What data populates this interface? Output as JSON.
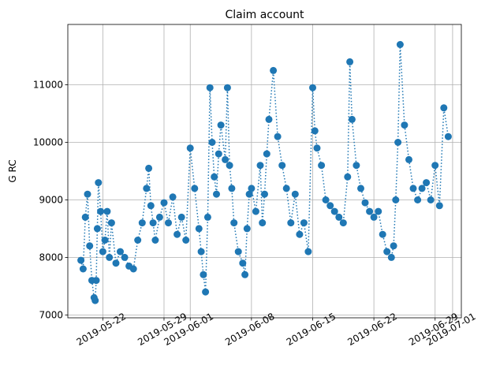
{
  "chart_data": {
    "type": "line",
    "title": "Claim account",
    "xlabel": "",
    "ylabel": "G RC",
    "grid": true,
    "legend": "none",
    "color": "#1f77b4",
    "line_style": "dotted",
    "marker": "circle",
    "x_range": [
      "2019-05-18",
      "2019-07-02"
    ],
    "ylim": [
      6950,
      12050
    ],
    "x_ticks": [
      "2019-05-22",
      "2019-05-29",
      "2019-06-01",
      "2019-06-08",
      "2019-06-15",
      "2019-06-22",
      "2019-06-29",
      "2019-07-01"
    ],
    "y_ticks": [
      7000,
      8000,
      9000,
      10000,
      11000
    ],
    "series": [
      {
        "name": "",
        "x": [
          "2019-05-19 12:00",
          "2019-05-19 18:00",
          "2019-05-20 00:00",
          "2019-05-20 06:00",
          "2019-05-20 12:00",
          "2019-05-20 18:00",
          "2019-05-21 00:00",
          "2019-05-21 03:00",
          "2019-05-21 06:00",
          "2019-05-21 09:00",
          "2019-05-21 12:00",
          "2019-05-21 18:00",
          "2019-05-22 00:00",
          "2019-05-22 06:00",
          "2019-05-22 12:00",
          "2019-05-22 18:00",
          "2019-05-23 00:00",
          "2019-05-23 12:00",
          "2019-05-24 00:00",
          "2019-05-24 12:00",
          "2019-05-25 00:00",
          "2019-05-25 12:00",
          "2019-05-26 00:00",
          "2019-05-26 12:00",
          "2019-05-27 00:00",
          "2019-05-27 06:00",
          "2019-05-27 12:00",
          "2019-05-27 18:00",
          "2019-05-28 00:00",
          "2019-05-28 12:00",
          "2019-05-29 00:00",
          "2019-05-29 12:00",
          "2019-05-30 00:00",
          "2019-05-30 12:00",
          "2019-05-31 00:00",
          "2019-05-31 12:00",
          "2019-06-01 00:00",
          "2019-06-01 12:00",
          "2019-06-02 00:00",
          "2019-06-02 06:00",
          "2019-06-02 12:00",
          "2019-06-02 18:00",
          "2019-06-03 00:00",
          "2019-06-03 06:00",
          "2019-06-03 12:00",
          "2019-06-03 18:00",
          "2019-06-04 00:00",
          "2019-06-04 06:00",
          "2019-06-04 12:00",
          "2019-06-05 00:00",
          "2019-06-05 06:00",
          "2019-06-05 12:00",
          "2019-06-05 18:00",
          "2019-06-06 00:00",
          "2019-06-06 12:00",
          "2019-06-07 00:00",
          "2019-06-07 06:00",
          "2019-06-07 12:00",
          "2019-06-07 18:00",
          "2019-06-08 00:00",
          "2019-06-08 12:00",
          "2019-06-09 00:00",
          "2019-06-09 06:00",
          "2019-06-09 12:00",
          "2019-06-09 18:00",
          "2019-06-10 00:00",
          "2019-06-10 12:00",
          "2019-06-11 00:00",
          "2019-06-11 12:00",
          "2019-06-12 00:00",
          "2019-06-12 12:00",
          "2019-06-13 00:00",
          "2019-06-13 12:00",
          "2019-06-14 00:00",
          "2019-06-14 12:00",
          "2019-06-15 00:00",
          "2019-06-15 06:00",
          "2019-06-15 12:00",
          "2019-06-16 00:00",
          "2019-06-16 12:00",
          "2019-06-17 00:00",
          "2019-06-17 12:00",
          "2019-06-18 00:00",
          "2019-06-18 12:00",
          "2019-06-19 00:00",
          "2019-06-19 06:00",
          "2019-06-19 12:00",
          "2019-06-20 00:00",
          "2019-06-20 12:00",
          "2019-06-21 00:00",
          "2019-06-21 12:00",
          "2019-06-22 00:00",
          "2019-06-22 12:00",
          "2019-06-23 00:00",
          "2019-06-23 12:00",
          "2019-06-24 00:00",
          "2019-06-24 06:00",
          "2019-06-24 12:00",
          "2019-06-24 18:00",
          "2019-06-25 00:00",
          "2019-06-25 12:00",
          "2019-06-26 00:00",
          "2019-06-26 12:00",
          "2019-06-27 00:00",
          "2019-06-27 12:00",
          "2019-06-28 00:00",
          "2019-06-28 12:00",
          "2019-06-29 00:00",
          "2019-06-29 12:00",
          "2019-06-30 00:00",
          "2019-06-30 12:00"
        ],
        "y": [
          7950,
          7800,
          8700,
          9100,
          8200,
          7600,
          7300,
          7250,
          7600,
          8500,
          9300,
          8800,
          8100,
          8300,
          8800,
          8000,
          8600,
          7900,
          8100,
          8000,
          7850,
          7800,
          8300,
          8600,
          9200,
          9550,
          8900,
          8600,
          8300,
          8700,
          8950,
          8600,
          9050,
          8400,
          8700,
          8300,
          9900,
          9200,
          8500,
          8100,
          7700,
          7400,
          8700,
          10950,
          10000,
          9400,
          9100,
          9800,
          10300,
          9700,
          10950,
          9600,
          9200,
          8600,
          8100,
          7900,
          7700,
          8500,
          9100,
          9200,
          8800,
          9600,
          8600,
          9100,
          9800,
          10400,
          11250,
          10100,
          9600,
          9200,
          8600,
          9100,
          8400,
          8600,
          8100,
          10950,
          10200,
          9900,
          9600,
          9000,
          8900,
          8800,
          8700,
          8600,
          9400,
          11400,
          10400,
          9600,
          9200,
          8950,
          8800,
          8700,
          8800,
          8400,
          8100,
          8000,
          8200,
          9000,
          10000,
          11700,
          10300,
          9700,
          9200,
          9000,
          9200,
          9300,
          9000,
          9600,
          8900,
          10600,
          10100
        ]
      }
    ]
  }
}
